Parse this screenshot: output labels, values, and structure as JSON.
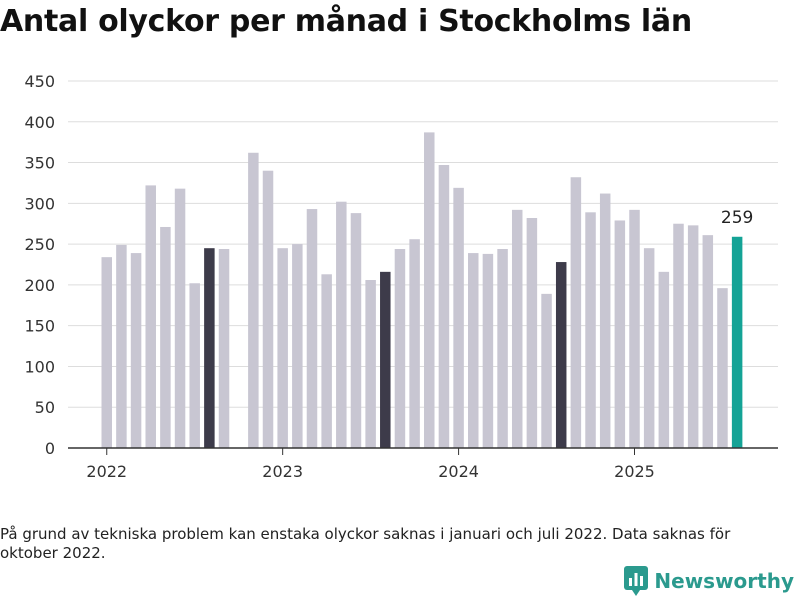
{
  "title": "Antal olyckor per månad i Stockholms län",
  "footnote": "På grund av tekniska problem kan enstaka olyckor saknas i januari och juli 2022. Data saknas för oktober 2022.",
  "brand": {
    "name": "Newsworthy",
    "icon": "newsworthy-logo-icon",
    "color": "#2b9a8e"
  },
  "colors": {
    "default": "#c8c6d2",
    "august": "#3d3b4a",
    "latest": "#14a396",
    "grid": "#dddddd",
    "axis": "#333333"
  },
  "chart_data": {
    "type": "bar",
    "title": "Antal olyckor per månad i Stockholms län",
    "xlabel": "",
    "ylabel": "",
    "ylim": [
      0,
      450
    ],
    "yticks": [
      0,
      50,
      100,
      150,
      200,
      250,
      300,
      350,
      400,
      450
    ],
    "xticks": [
      "2022",
      "2023",
      "2024",
      "2025"
    ],
    "grid": true,
    "categories": [
      "2022-01",
      "2022-02",
      "2022-03",
      "2022-04",
      "2022-05",
      "2022-06",
      "2022-07",
      "2022-08",
      "2022-09",
      "2022-10",
      "2022-11",
      "2022-12",
      "2023-01",
      "2023-02",
      "2023-03",
      "2023-04",
      "2023-05",
      "2023-06",
      "2023-07",
      "2023-08",
      "2023-09",
      "2023-10",
      "2023-11",
      "2023-12",
      "2024-01",
      "2024-02",
      "2024-03",
      "2024-04",
      "2024-05",
      "2024-06",
      "2024-07",
      "2024-08",
      "2024-09",
      "2024-10",
      "2024-11",
      "2024-12",
      "2025-01",
      "2025-02",
      "2025-03",
      "2025-04",
      "2025-05",
      "2025-06",
      "2025-07",
      "2025-08"
    ],
    "values": [
      234,
      249,
      239,
      322,
      271,
      318,
      202,
      245,
      244,
      null,
      362,
      340,
      245,
      250,
      293,
      213,
      302,
      288,
      206,
      216,
      244,
      256,
      387,
      347,
      319,
      239,
      238,
      244,
      292,
      282,
      189,
      228,
      332,
      289,
      312,
      279,
      292,
      245,
      216,
      275,
      273,
      261,
      196,
      259
    ],
    "highlight": {
      "august": [
        "2022-08",
        "2023-08",
        "2024-08"
      ],
      "latest": "2025-08"
    },
    "annotations": [
      {
        "category": "2025-08",
        "text": "259"
      }
    ]
  }
}
